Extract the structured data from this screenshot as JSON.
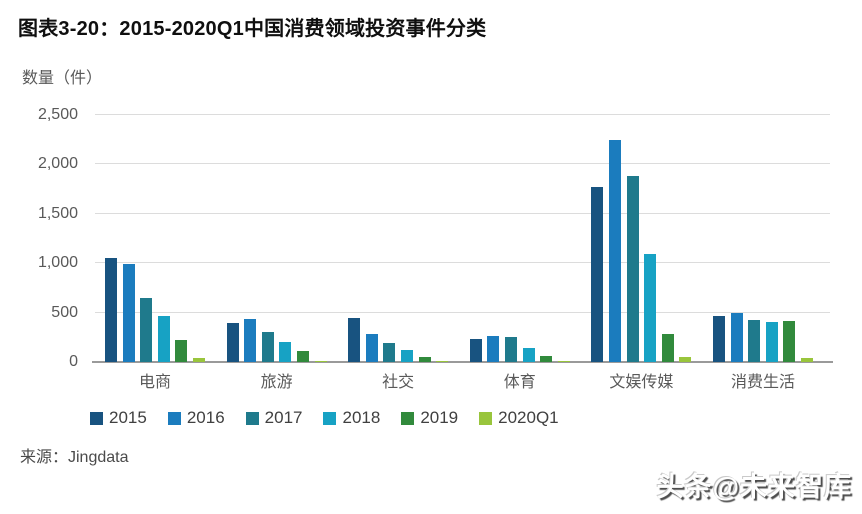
{
  "header": {
    "title": "图表3-20：2015-2020Q1中国消费领域投资事件分类"
  },
  "chart_data": {
    "type": "bar",
    "title": "图表3-20：2015-2020Q1中国消费领域投资事件分类",
    "ylabel": "数量（件）",
    "xlabel": "",
    "ylim": [
      0,
      2500
    ],
    "yticks": [
      0,
      500,
      1000,
      1500,
      2000,
      2500
    ],
    "ytick_labels": [
      "0",
      "500",
      "1,000",
      "1,500",
      "2,000",
      "2,500"
    ],
    "grid": true,
    "legend_position": "bottom",
    "categories": [
      "电商",
      "旅游",
      "社交",
      "体育",
      "文娱传媒",
      "消费生活"
    ],
    "series": [
      {
        "name": "2015",
        "color": "#185380",
        "values": [
          1050,
          390,
          450,
          230,
          1770,
          465
        ]
      },
      {
        "name": "2016",
        "color": "#1b7cbe",
        "values": [
          990,
          435,
          280,
          265,
          2250,
          500
        ]
      },
      {
        "name": "2017",
        "color": "#1f7a8c",
        "values": [
          650,
          300,
          195,
          250,
          1880,
          430
        ]
      },
      {
        "name": "2018",
        "color": "#17a2c4",
        "values": [
          470,
          200,
          125,
          140,
          1090,
          405
        ]
      },
      {
        "name": "2019",
        "color": "#318a3c",
        "values": [
          225,
          110,
          55,
          60,
          285,
          410
        ]
      },
      {
        "name": "2020Q1",
        "color": "#99c53c",
        "values": [
          40,
          8,
          10,
          8,
          55,
          40
        ]
      }
    ]
  },
  "footer": {
    "source": "来源：Jingdata",
    "watermark": "头条@未来智库"
  },
  "colors": {
    "gridline": "#dcdcdc",
    "axis_line": "#9a9a9a",
    "tick_text": "#595959",
    "title_text": "#0f0f0f"
  }
}
